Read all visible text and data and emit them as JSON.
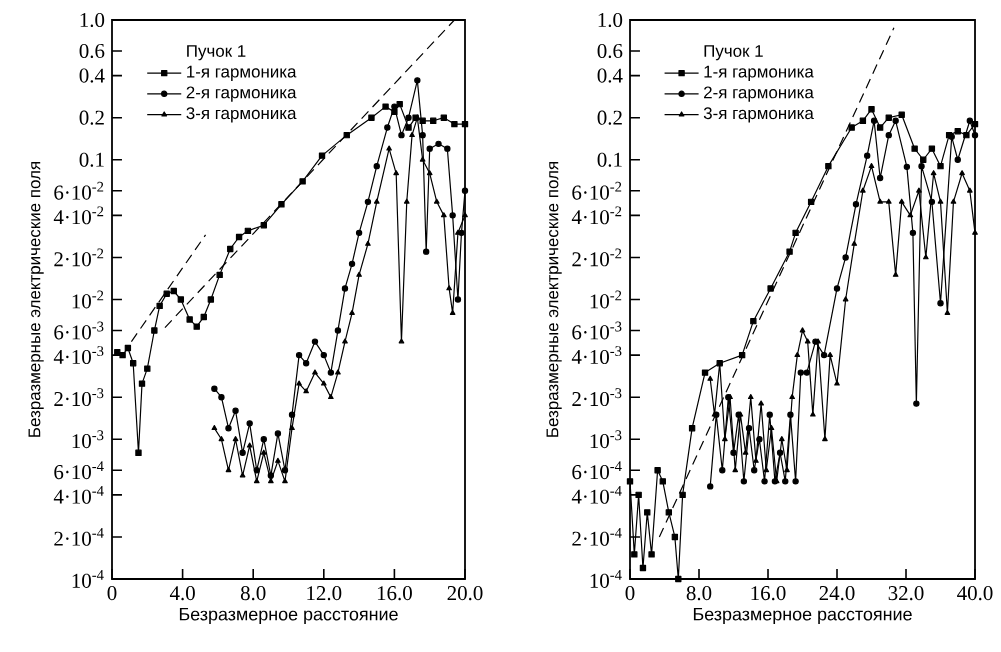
{
  "chart_data": [
    {
      "type": "line",
      "xlabel": "Безразмерное расстояние",
      "ylabel": "Безразмерные электрические поля",
      "legend_title": "Пучок 1",
      "legend": "top left",
      "log": "y",
      "xlim": [
        0,
        20
      ],
      "ylim": [
        0.0001,
        1
      ],
      "xticks": [
        {
          "value": 0,
          "label": "0"
        },
        {
          "value": 4,
          "label": "4.0"
        },
        {
          "value": 8,
          "label": "8.0"
        },
        {
          "value": 12,
          "label": "12.0"
        },
        {
          "value": 16,
          "label": "16.0"
        },
        {
          "value": 20,
          "label": "20.0"
        }
      ],
      "yticks": [
        {
          "value": 0.0001,
          "label": "10$^{-4}$"
        },
        {
          "value": 0.0002,
          "label": "2·10$^{-4}$"
        },
        {
          "value": 0.0004,
          "label": "4·10$^{-4}$"
        },
        {
          "value": 0.0006,
          "label": "6·10$^{-4}$"
        },
        {
          "value": 0.001,
          "label": "10$^{-3}$"
        },
        {
          "value": 0.002,
          "label": "2·10$^{-3}$"
        },
        {
          "value": 0.004,
          "label": "4·10$^{-3}$"
        },
        {
          "value": 0.006,
          "label": "6·10$^{-3}$"
        },
        {
          "value": 0.01,
          "label": "10$^{-2}$"
        },
        {
          "value": 0.02,
          "label": "2·10$^{-2}$"
        },
        {
          "value": 0.04,
          "label": "4·10$^{-2}$"
        },
        {
          "value": 0.06,
          "label": "6·10$^{-2}$"
        },
        {
          "value": 0.1,
          "label": "0.1"
        },
        {
          "value": 0.2,
          "label": "0.2"
        },
        {
          "value": 0.4,
          "label": "0.4"
        },
        {
          "value": 0.6,
          "label": "0.6"
        },
        {
          "value": 1,
          "label": "1.0"
        }
      ],
      "series": [
        {
          "name": "1-я гармоника",
          "color": "#000000",
          "marker": "square",
          "x": [
            0.3,
            0.6,
            0.9,
            1.2,
            1.5,
            1.7,
            2.0,
            2.4,
            2.7,
            3.1,
            3.5,
            3.9,
            4.4,
            4.8,
            5.2,
            5.6,
            6.1,
            6.7,
            7.2,
            7.7,
            8.6,
            9.6,
            10.8,
            11.9,
            13.3,
            14.7,
            15.5,
            16.0,
            16.3,
            16.8,
            17.2,
            17.6,
            18.2,
            18.8,
            19.4,
            20.0
          ],
          "values": [
            0.0042,
            0.004,
            0.0045,
            0.0035,
            0.0008,
            0.0025,
            0.0032,
            0.006,
            0.009,
            0.011,
            0.0115,
            0.01,
            0.0072,
            0.0064,
            0.0075,
            0.01,
            0.015,
            0.023,
            0.028,
            0.031,
            0.034,
            0.048,
            0.07,
            0.107,
            0.15,
            0.2,
            0.24,
            0.22,
            0.25,
            0.17,
            0.2,
            0.19,
            0.19,
            0.2,
            0.18,
            0.18
          ]
        },
        {
          "name": "2-я гармоника",
          "color": "#000000",
          "marker": "circle",
          "x": [
            5.8,
            6.2,
            6.6,
            7.0,
            7.4,
            7.8,
            8.2,
            8.6,
            9.0,
            9.4,
            9.8,
            10.2,
            10.6,
            11.0,
            11.5,
            12.0,
            12.4,
            12.8,
            13.2,
            13.6,
            14.0,
            14.5,
            15.0,
            15.6,
            16.0,
            16.4,
            16.8,
            17.3,
            17.6,
            17.8,
            18.0,
            18.5,
            19.0,
            19.3,
            19.6,
            19.8,
            20.0
          ],
          "values": [
            0.0023,
            0.002,
            0.0012,
            0.0016,
            0.0008,
            0.0013,
            0.0006,
            0.001,
            0.00055,
            0.0011,
            0.0006,
            0.0015,
            0.004,
            0.0035,
            0.005,
            0.004,
            0.003,
            0.006,
            0.012,
            0.018,
            0.03,
            0.05,
            0.09,
            0.17,
            0.24,
            0.15,
            0.2,
            0.37,
            0.15,
            0.022,
            0.12,
            0.13,
            0.12,
            0.04,
            0.01,
            0.03,
            0.06
          ]
        },
        {
          "name": "3-я гармоника",
          "color": "#000000",
          "marker": "triangle",
          "x": [
            5.8,
            6.2,
            6.6,
            7.0,
            7.4,
            7.8,
            8.2,
            8.6,
            9.0,
            9.4,
            9.8,
            10.2,
            10.6,
            11.0,
            11.5,
            12.0,
            12.4,
            12.8,
            13.2,
            13.6,
            14.0,
            14.5,
            15.0,
            15.7,
            16.1,
            16.4,
            16.7,
            17.0,
            17.3,
            17.6,
            18.0,
            18.4,
            18.8,
            19.1,
            19.3,
            19.6,
            20.0
          ],
          "values": [
            0.0012,
            0.001,
            0.0006,
            0.001,
            0.00055,
            0.0009,
            0.0005,
            0.0008,
            0.0005,
            0.0007,
            0.0005,
            0.0012,
            0.0025,
            0.0022,
            0.003,
            0.0025,
            0.002,
            0.003,
            0.005,
            0.008,
            0.015,
            0.025,
            0.05,
            0.12,
            0.08,
            0.005,
            0.05,
            0.15,
            0.2,
            0.1,
            0.08,
            0.05,
            0.04,
            0.012,
            0.008,
            0.03,
            0.04
          ]
        },
        {
          "type": "line",
          "line_style": "dashed",
          "color": "#000000",
          "marker": "none",
          "x": [
            1.1,
            5.3
          ],
          "values": [
            0.005,
            0.029
          ]
        },
        {
          "type": "line",
          "line_style": "dashed",
          "color": "#000000",
          "marker": "none",
          "x": [
            3.0,
            19.4
          ],
          "values": [
            0.0063,
            1.0
          ]
        }
      ]
    },
    {
      "type": "line",
      "xlabel": "Безразмерное расстояние",
      "ylabel": "Безразмерные электрические поля",
      "legend_title": "Пучок 1",
      "legend": "top left",
      "log": "y",
      "xlim": [
        0,
        40
      ],
      "ylim": [
        0.0001,
        1
      ],
      "xticks": [
        {
          "value": 0,
          "label": "0"
        },
        {
          "value": 8,
          "label": "8.0"
        },
        {
          "value": 16,
          "label": "16.0"
        },
        {
          "value": 24,
          "label": "24.0"
        },
        {
          "value": 32,
          "label": "32.0"
        },
        {
          "value": 40,
          "label": "40.0"
        }
      ],
      "yticks": [
        {
          "value": 0.0001,
          "label": "10$^{-4}$"
        },
        {
          "value": 0.0002,
          "label": "2·10$^{-4}$"
        },
        {
          "value": 0.0004,
          "label": "4·10$^{-4}$"
        },
        {
          "value": 0.0006,
          "label": "6·10$^{-4}$"
        },
        {
          "value": 0.001,
          "label": "10$^{-3}$"
        },
        {
          "value": 0.002,
          "label": "2·10$^{-3}$"
        },
        {
          "value": 0.004,
          "label": "4·10$^{-3}$"
        },
        {
          "value": 0.006,
          "label": "6·10$^{-3}$"
        },
        {
          "value": 0.01,
          "label": "10$^{-2}$"
        },
        {
          "value": 0.02,
          "label": "2·10$^{-2}$"
        },
        {
          "value": 0.04,
          "label": "4·10$^{-2}$"
        },
        {
          "value": 0.06,
          "label": "6·10$^{-2}$"
        },
        {
          "value": 0.1,
          "label": "0.1"
        },
        {
          "value": 0.2,
          "label": "0.2"
        },
        {
          "value": 0.4,
          "label": "0.4"
        },
        {
          "value": 0.6,
          "label": "0.6"
        },
        {
          "value": 1,
          "label": "1.0"
        }
      ],
      "series": [
        {
          "name": "1-я гармоника",
          "color": "#000000",
          "marker": "square",
          "x": [
            0,
            0.5,
            1.0,
            1.5,
            2.0,
            2.5,
            3.2,
            3.8,
            4.5,
            5.2,
            5.6,
            6.1,
            7.2,
            8.7,
            10.4,
            13.0,
            14.3,
            16.3,
            18.5,
            19.2,
            21,
            23,
            25.7,
            27,
            28,
            29,
            30,
            31.5,
            33,
            34,
            35,
            36,
            37,
            38,
            39,
            40
          ],
          "values": [
            0.0005,
            0.00015,
            0.0004,
            0.00012,
            0.0003,
            0.00015,
            0.0006,
            0.0005,
            0.0003,
            0.0002,
            0.0001,
            0.0004,
            0.0012,
            0.003,
            0.0035,
            0.004,
            0.007,
            0.012,
            0.022,
            0.03,
            0.05,
            0.09,
            0.17,
            0.19,
            0.23,
            0.17,
            0.2,
            0.21,
            0.12,
            0.1,
            0.12,
            0.09,
            0.15,
            0.16,
            0.15,
            0.18
          ]
        },
        {
          "name": "2-я гармоника",
          "color": "#000000",
          "marker": "circle",
          "x": [
            9.3,
            10,
            10.7,
            11.4,
            12,
            12.6,
            13.2,
            13.8,
            14.4,
            15,
            15.6,
            16.2,
            16.8,
            17.4,
            18,
            18.6,
            19.2,
            19.8,
            20.5,
            21.5,
            22.5,
            24,
            25,
            26.2,
            27.5,
            28.3,
            29,
            30,
            30.8,
            32.1,
            32.8,
            33.2,
            33.8,
            35,
            36,
            37.3,
            38,
            39.4,
            40
          ],
          "values": [
            0.00046,
            0.0015,
            0.0006,
            0.002,
            0.0008,
            0.0015,
            0.0005,
            0.0012,
            0.0006,
            0.001,
            0.0005,
            0.0015,
            0.0005,
            0.0008,
            0.0005,
            0.0015,
            0.0005,
            0.003,
            0.003,
            0.005,
            0.004,
            0.012,
            0.02,
            0.048,
            0.107,
            0.19,
            0.074,
            0.15,
            0.19,
            0.089,
            0.03,
            0.0018,
            0.09,
            0.05,
            0.0094,
            0.146,
            0.1,
            0.19,
            0.15
          ]
        },
        {
          "name": "3-я гармоника",
          "color": "#000000",
          "marker": "triangle",
          "x": [
            9.3,
            9.8,
            10.4,
            11,
            11.6,
            12.2,
            12.8,
            13.4,
            14,
            14.6,
            15.2,
            15.8,
            16.4,
            17,
            17.6,
            18.2,
            18.8,
            19.4,
            20,
            20.6,
            21.2,
            21.8,
            22.6,
            23.2,
            24,
            25,
            26,
            27,
            28,
            29,
            30,
            30.8,
            31.5,
            32.5,
            33.5,
            34.3,
            35.2,
            36,
            36.8,
            37.5,
            38.5,
            39.4,
            40
          ],
          "values": [
            0.0027,
            0.0015,
            0.0035,
            0.001,
            0.002,
            0.0006,
            0.0015,
            0.0008,
            0.002,
            0.0007,
            0.0018,
            0.0006,
            0.0012,
            0.0005,
            0.001,
            0.0006,
            0.002,
            0.004,
            0.006,
            0.005,
            0.0015,
            0.005,
            0.001,
            0.004,
            0.0025,
            0.01,
            0.025,
            0.06,
            0.09,
            0.05,
            0.05,
            0.015,
            0.05,
            0.04,
            0.06,
            0.02,
            0.08,
            0.05,
            0.008,
            0.05,
            0.08,
            0.06,
            0.03
          ]
        },
        {
          "type": "line",
          "line_style": "dashed",
          "color": "#000000",
          "marker": "none",
          "x": [
            3.4,
            30.6
          ],
          "values": [
            0.0002,
            0.88
          ]
        }
      ]
    }
  ]
}
